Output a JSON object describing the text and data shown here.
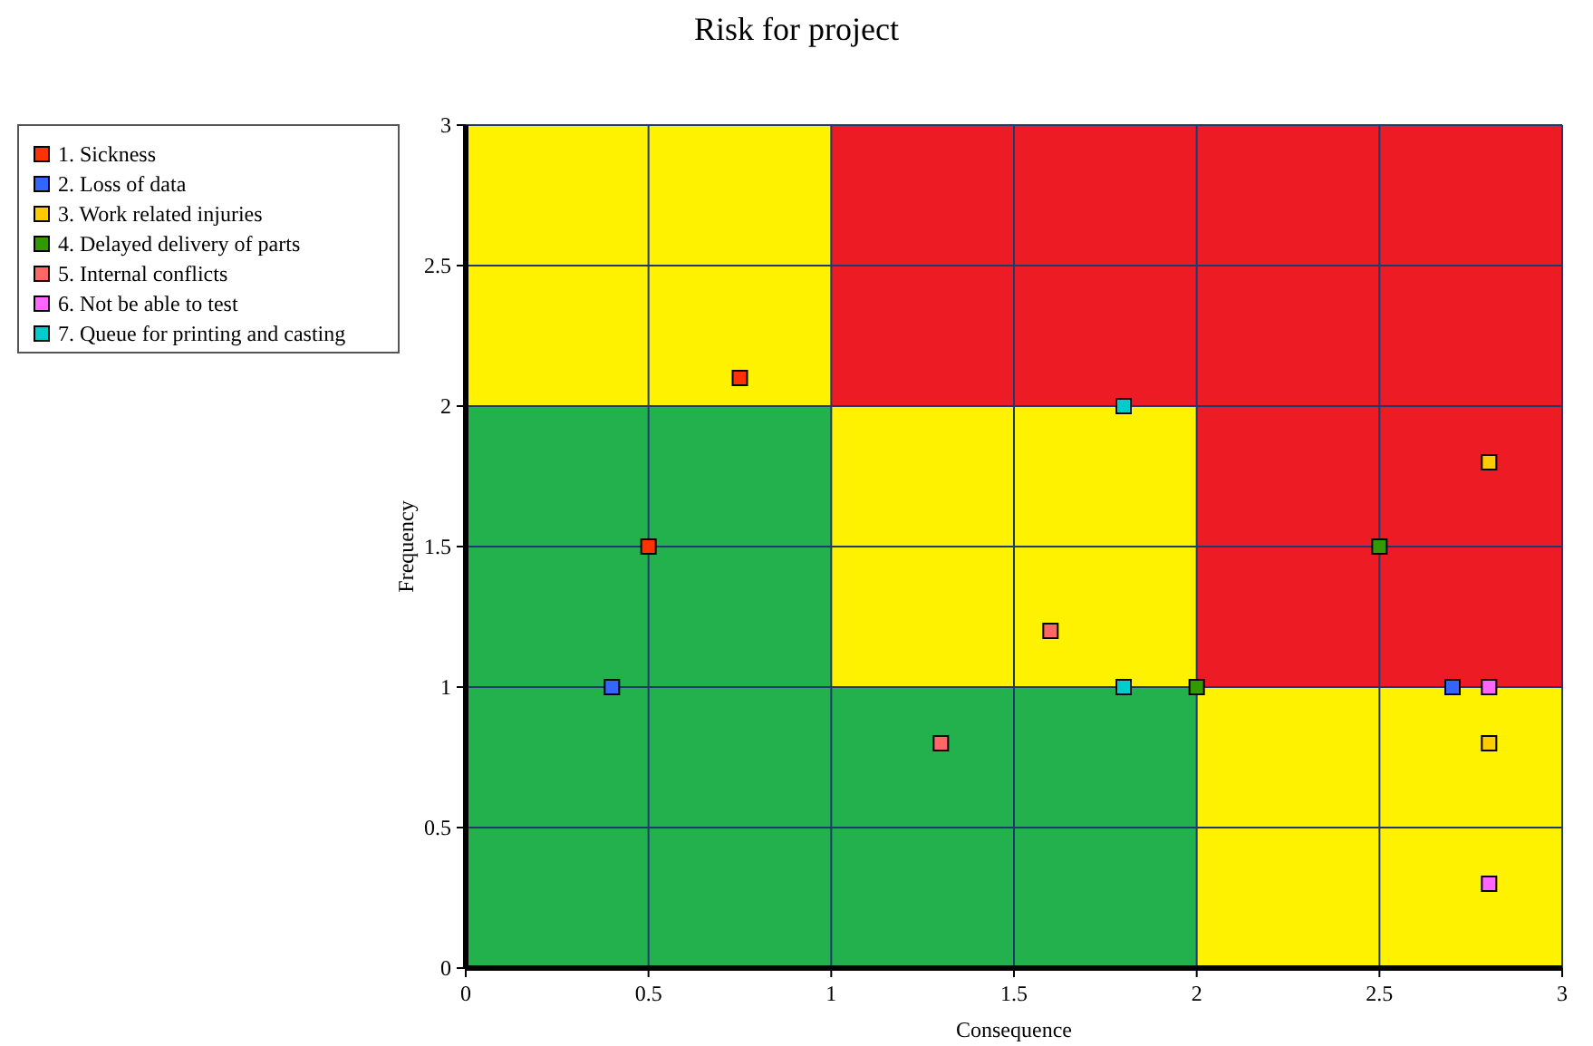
{
  "chart_data": {
    "type": "scatter",
    "title": "Risk for project",
    "xlabel": "Consequence",
    "ylabel": "Frequency",
    "xlim": [
      0,
      3
    ],
    "ylim": [
      0,
      3
    ],
    "xticks": [
      0,
      0.5,
      1,
      1.5,
      2,
      2.5,
      3
    ],
    "yticks": [
      0,
      0.5,
      1,
      1.5,
      2,
      2.5,
      3
    ],
    "grid": true,
    "legend": "top left",
    "marker": "square",
    "stacked": true,
    "series": [
      {
        "type": "bar",
        "color": "#22b14c",
        "x": [
          0.5,
          1.5,
          2.5
        ],
        "values": [
          2,
          1,
          0
        ]
      },
      {
        "type": "bar",
        "color": "#fff200",
        "x": [
          0.5,
          1.5,
          2.5
        ],
        "values": [
          1,
          1,
          1
        ]
      },
      {
        "type": "bar",
        "color": "#ed1c24",
        "x": [
          0.5,
          1.5,
          2.5
        ],
        "values": [
          0,
          1,
          2
        ]
      },
      {
        "name": "1. Sickness",
        "color": "#ff3300",
        "x": [
          0.75,
          0.5
        ],
        "values": [
          2.1,
          1.5
        ]
      },
      {
        "name": "2. Loss of data",
        "color": "#3366ff",
        "x": [
          0.4,
          2.7
        ],
        "values": [
          1.0,
          1.0
        ]
      },
      {
        "name": "3. Work related injuries",
        "color": "#ffcc00",
        "x": [
          2.8,
          2.8
        ],
        "values": [
          1.8,
          0.8
        ]
      },
      {
        "name": "4. Delayed delivery of parts",
        "color": "#339900",
        "x": [
          2.5,
          2.0
        ],
        "values": [
          1.5,
          1.0
        ]
      },
      {
        "name": "5. Internal conflicts",
        "color": "#ff6666",
        "x": [
          1.6,
          1.3
        ],
        "values": [
          1.2,
          0.8
        ]
      },
      {
        "name": "6. Not be able to test",
        "color": "#ff66ff",
        "x": [
          2.8,
          2.8
        ],
        "values": [
          1.0,
          0.3
        ]
      },
      {
        "name": "7. Queue for printing and casting",
        "color": "#00cccc",
        "x": [
          1.8,
          1.8
        ],
        "values": [
          2.0,
          1.0
        ]
      }
    ]
  }
}
